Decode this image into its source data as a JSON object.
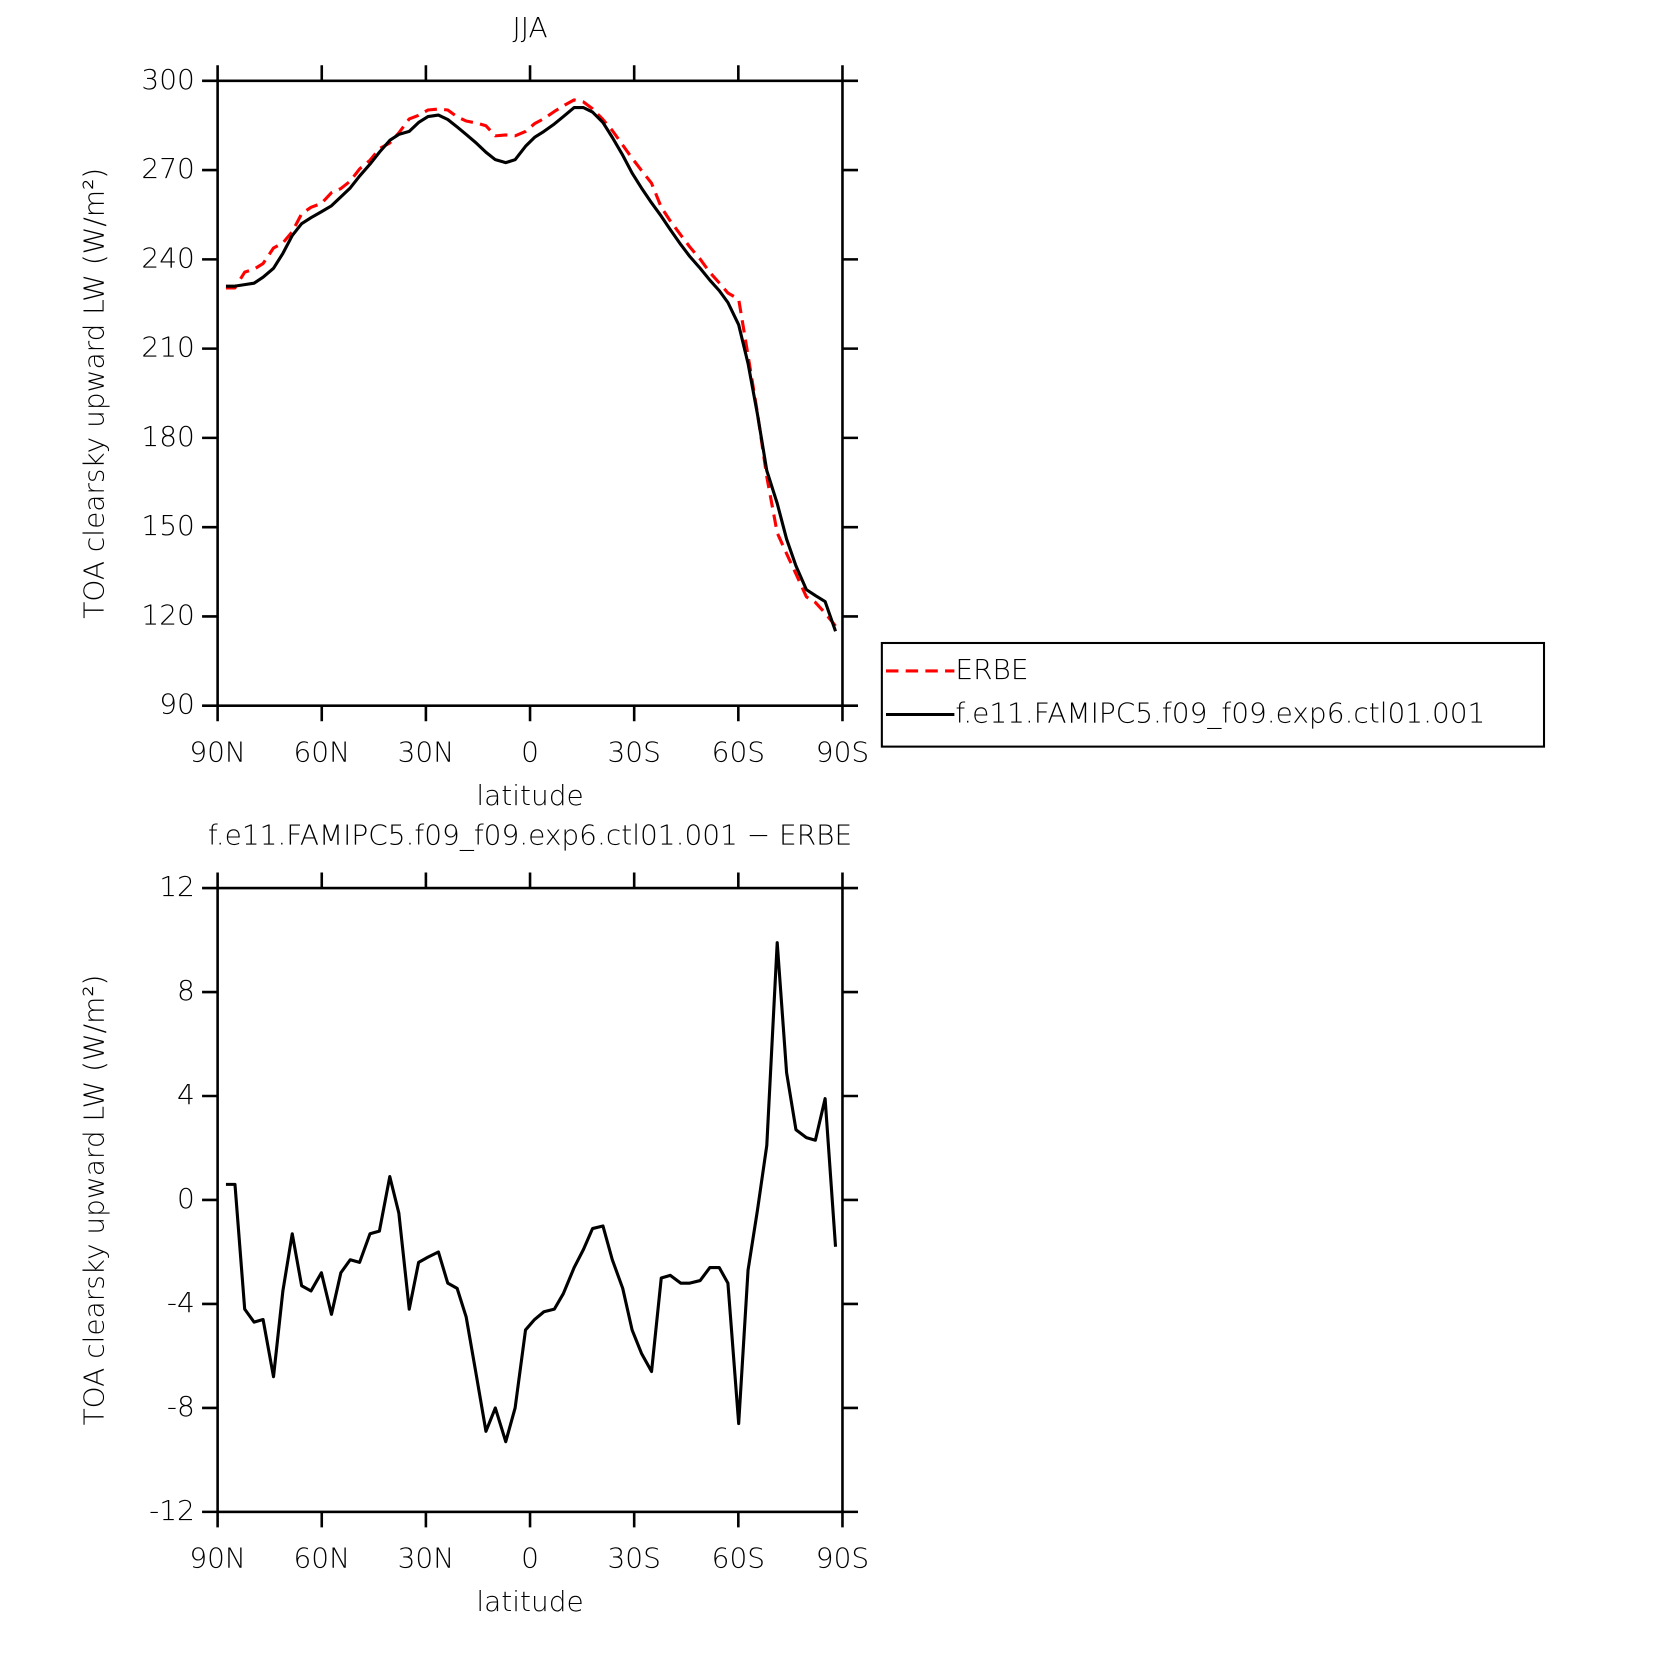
{
  "chart_data": [
    {
      "type": "line",
      "title": "JJA",
      "xlabel": "latitude",
      "ylabel": "TOA clearsky upward LW (W/m²)",
      "x": [
        87.6,
        85,
        82.2,
        79.5,
        76.9,
        73.9,
        71.2,
        68.5,
        65.8,
        63.1,
        60.1,
        57.2,
        54.5,
        51.8,
        49.1,
        46.1,
        43.4,
        40.4,
        37.8,
        34.8,
        32.1,
        29.4,
        26.4,
        23.7,
        21,
        18.4,
        15.4,
        12.7,
        10,
        7,
        4.3,
        1.3,
        -1.3,
        -4,
        -7,
        -9.6,
        -12.7,
        -15.4,
        -18,
        -21,
        -23.7,
        -26.7,
        -29.4,
        -32.1,
        -35,
        -37.8,
        -40.4,
        -43.4,
        -46,
        -49,
        -51.8,
        -54.5,
        -57,
        -60.1,
        -62.8,
        -65.5,
        -68.2,
        -71.2,
        -73.9,
        -76.6,
        -79.6,
        -82.2,
        -85,
        -88
      ],
      "series": [
        {
          "name": "ERBE",
          "color": "#ff0000",
          "dash": "dashed",
          "values": [
            230.4,
            230.4,
            235.7,
            236.7,
            238.6,
            243.8,
            245.5,
            249.3,
            255.3,
            257.5,
            258.8,
            262.4,
            263.8,
            266.3,
            270.4,
            273.3,
            277.2,
            279.1,
            282.5,
            287.2,
            288.4,
            290.2,
            290.5,
            290.2,
            287.9,
            286.5,
            285.8,
            284.9,
            281.5,
            281.8,
            281.5,
            283,
            285.6,
            287.3,
            289.7,
            291.6,
            293.6,
            292.9,
            290.6,
            287,
            283.3,
            278.4,
            274,
            269.9,
            265.6,
            257.5,
            252.9,
            248.2,
            244.2,
            240.1,
            235.6,
            232.1,
            228.7,
            226.6,
            207.7,
            188.4,
            166.9,
            148.1,
            141.1,
            134.3,
            126.6,
            124.7,
            121.1,
            116.8
          ]
        },
        {
          "name": "f.e11.FAMIPC5.f09_f09.exp6.ctl01.001",
          "color": "#000000",
          "dash": "solid",
          "values": [
            231,
            231,
            231.5,
            232,
            234,
            237,
            242,
            248,
            252,
            254,
            256,
            258,
            261,
            264,
            268,
            272,
            276,
            280,
            282,
            283,
            286,
            288,
            288.5,
            287,
            284.5,
            282,
            279,
            276,
            273.5,
            272.5,
            273.5,
            278,
            281,
            283,
            285.5,
            288,
            291,
            291,
            289.5,
            286,
            281,
            275,
            269,
            264,
            259,
            254.5,
            250,
            245,
            241,
            237,
            233,
            229.5,
            225.5,
            218,
            205,
            188,
            169,
            158,
            146,
            137,
            129,
            127,
            125,
            115
          ]
        }
      ],
      "xlim": [
        90,
        -90
      ],
      "xticks": [
        {
          "value": 90,
          "label": "90N"
        },
        {
          "value": 60,
          "label": "60N"
        },
        {
          "value": 30,
          "label": "30N"
        },
        0,
        {
          "value": -30,
          "label": "30S"
        },
        {
          "value": -60,
          "label": "60S"
        },
        {
          "value": -90,
          "label": "90S"
        }
      ],
      "ylim": [
        90,
        300
      ],
      "yticks": [
        90,
        120,
        150,
        180,
        210,
        240,
        270,
        300
      ],
      "legend": "right"
    },
    {
      "type": "line",
      "title": "f.e11.FAMIPC5.f09_f09.exp6.ctl01.001 − ERBE",
      "xlabel": "latitude",
      "ylabel": "TOA clearsky upward LW (W/m²)",
      "x": [
        87.6,
        85,
        82.2,
        79.5,
        76.9,
        73.9,
        71.2,
        68.5,
        65.8,
        63.1,
        60.1,
        57.2,
        54.5,
        51.8,
        49.1,
        46.1,
        43.4,
        40.4,
        37.8,
        34.8,
        32.1,
        29.4,
        26.4,
        23.7,
        21,
        18.4,
        15.4,
        12.7,
        10,
        7,
        4.3,
        1.3,
        -1.3,
        -4,
        -7,
        -9.6,
        -12.7,
        -15.4,
        -18,
        -21,
        -23.7,
        -26.7,
        -29.4,
        -32.1,
        -35,
        -37.8,
        -40.4,
        -43.4,
        -46,
        -49,
        -51.8,
        -54.5,
        -57,
        -60.1,
        -62.8,
        -65.5,
        -68.2,
        -71.2,
        -73.9,
        -76.6,
        -79.6,
        -82.2,
        -85,
        -88
      ],
      "series": [
        {
          "color": "#000000",
          "dash": "solid",
          "values": [
            0.6,
            0.6,
            -4.2,
            -4.7,
            -4.6,
            -6.8,
            -3.5,
            -1.3,
            -3.3,
            -3.5,
            -2.8,
            -4.4,
            -2.8,
            -2.3,
            -2.4,
            -1.3,
            -1.2,
            0.9,
            -0.5,
            -4.2,
            -2.4,
            -2.2,
            -2,
            -3.2,
            -3.4,
            -4.5,
            -6.8,
            -8.9,
            -8,
            -9.3,
            -8,
            -5,
            -4.6,
            -4.3,
            -4.2,
            -3.6,
            -2.6,
            -1.9,
            -1.1,
            -1,
            -2.3,
            -3.4,
            -5,
            -5.9,
            -6.6,
            -3,
            -2.9,
            -3.2,
            -3.2,
            -3.1,
            -2.6,
            -2.6,
            -3.2,
            -8.6,
            -2.7,
            -0.4,
            2.1,
            9.9,
            4.9,
            2.7,
            2.4,
            2.3,
            3.9,
            -1.8
          ]
        }
      ],
      "xlim": [
        90,
        -90
      ],
      "xticks": [
        {
          "value": 90,
          "label": "90N"
        },
        {
          "value": 60,
          "label": "60N"
        },
        {
          "value": 30,
          "label": "30N"
        },
        0,
        {
          "value": -30,
          "label": "30S"
        },
        {
          "value": -60,
          "label": "60S"
        },
        {
          "value": -90,
          "label": "90S"
        }
      ],
      "ylim": [
        -12,
        12
      ],
      "yticks": [
        -12,
        -8,
        -4,
        0,
        4,
        8,
        12
      ]
    }
  ]
}
